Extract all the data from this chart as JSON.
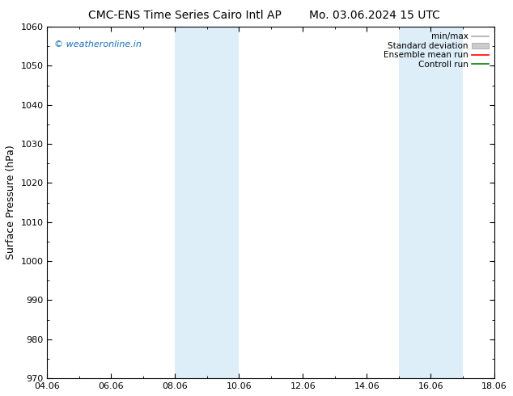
{
  "title_left": "CMC-ENS Time Series Cairo Intl AP",
  "title_right": "Mo. 03.06.2024 15 UTC",
  "ylabel": "Surface Pressure (hPa)",
  "ylim": [
    970,
    1060
  ],
  "yticks": [
    970,
    980,
    990,
    1000,
    1010,
    1020,
    1030,
    1040,
    1050,
    1060
  ],
  "xlim_num": [
    0,
    14
  ],
  "xtick_labels": [
    "04.06",
    "06.06",
    "08.06",
    "10.06",
    "12.06",
    "14.06",
    "16.06",
    "18.06"
  ],
  "xtick_positions": [
    0,
    2,
    4,
    6,
    8,
    10,
    12,
    14
  ],
  "shaded_bands": [
    {
      "xmin": 4,
      "xmax": 6,
      "color": "#ddeef8"
    },
    {
      "xmin": 11,
      "xmax": 13,
      "color": "#ddeef8"
    }
  ],
  "watermark": "© weatheronline.in",
  "watermark_color": "#1a6eb5",
  "legend_entries": [
    {
      "label": "min/max",
      "color": "#aaaaaa",
      "lw": 1.2,
      "type": "line"
    },
    {
      "label": "Standard deviation",
      "color": "#cccccc",
      "lw": 6,
      "type": "patch"
    },
    {
      "label": "Ensemble mean run",
      "color": "#ff0000",
      "lw": 1.2,
      "type": "line"
    },
    {
      "label": "Controll run",
      "color": "#008800",
      "lw": 1.2,
      "type": "line"
    }
  ],
  "bg_color": "#ffffff",
  "title_fontsize": 10,
  "ylabel_fontsize": 9,
  "tick_fontsize": 8,
  "watermark_fontsize": 8,
  "legend_fontsize": 7.5
}
